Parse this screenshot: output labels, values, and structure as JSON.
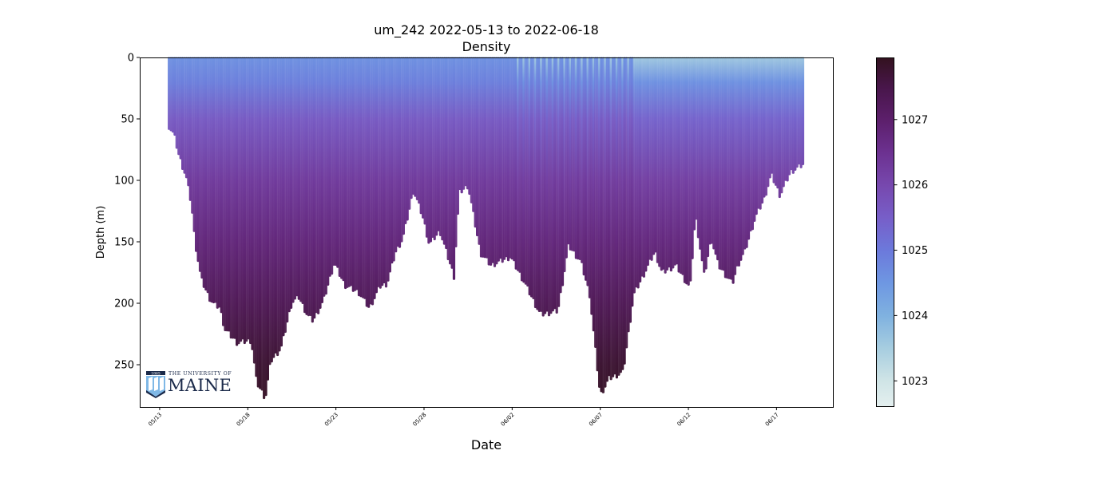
{
  "chart_data": {
    "type": "scatter",
    "title": "um_242 2022-05-13 to 2022-06-18",
    "subtitle": "Density",
    "xlabel": "Date",
    "ylabel": "Depth (m)",
    "x_units": "days since 2022-05-13",
    "xlim": [
      -1.13,
      38.2
    ],
    "ylim": [
      284.4,
      0
    ],
    "y_inverted": true,
    "xticks": [
      {
        "day": 0,
        "label": "05/13"
      },
      {
        "day": 5,
        "label": "05/18"
      },
      {
        "day": 10,
        "label": "05/23"
      },
      {
        "day": 15,
        "label": "05/28"
      },
      {
        "day": 20,
        "label": "06/02"
      },
      {
        "day": 25,
        "label": "06/07"
      },
      {
        "day": 30,
        "label": "06/12"
      },
      {
        "day": 35,
        "label": "06/17"
      }
    ],
    "yticks": [
      0,
      50,
      100,
      150,
      200,
      250
    ],
    "grid": false,
    "profile_max_depth": {
      "day": [
        0.53,
        0.82,
        1.1,
        1.5,
        1.8,
        2.0,
        2.35,
        2.8,
        3.1,
        3.4,
        3.7,
        4.4,
        5.2,
        5.5,
        6.0,
        6.3,
        6.9,
        7.5,
        7.9,
        8.4,
        8.7,
        9.3,
        9.9,
        10.5,
        11.3,
        11.9,
        12.5,
        12.9,
        13.4,
        13.8,
        14.1,
        14.4,
        14.9,
        15.3,
        15.9,
        16.7,
        17.0,
        17.5,
        18.2,
        18.8,
        19.9,
        20.7,
        21.6,
        22.6,
        23.2,
        23.9,
        24.4,
        25.0,
        25.5,
        26.3,
        26.9,
        28.1,
        28.5,
        29.3,
        30.1,
        30.4,
        30.9,
        31.3,
        31.7,
        32.5,
        32.8,
        33.2,
        33.8,
        34.3,
        34.7,
        35.2,
        35.8,
        36.5
      ],
      "depth": [
        58,
        65,
        82,
        99,
        121,
        151,
        182,
        197,
        203,
        205,
        223,
        234,
        232,
        266,
        279,
        249,
        238,
        201,
        197,
        212,
        216,
        200,
        169,
        187,
        193,
        206,
        188,
        186,
        160,
        149,
        130,
        110,
        130,
        154,
        143,
        180,
        112,
        106,
        161,
        171,
        164,
        185,
        211,
        208,
        155,
        168,
        195,
        277,
        263,
        258,
        195,
        160,
        177,
        171,
        190,
        130,
        180,
        149,
        171,
        186,
        171,
        160,
        132,
        117,
        97,
        114,
        95,
        89
      ]
    },
    "density_profile": {
      "depth": [
        0,
        20,
        50,
        100,
        150,
        200,
        250,
        284
      ],
      "early_density": [
        1024.6,
        1024.9,
        1025.6,
        1026.3,
        1026.8,
        1027.3,
        1027.75,
        1027.9
      ],
      "late_density": [
        1023.6,
        1024.6,
        1025.4,
        1026.2,
        1026.75,
        1027.3,
        1027.75,
        1027.9
      ]
    },
    "colorbar": {
      "label": "",
      "range": [
        1022.6,
        1027.95
      ],
      "ticks": [
        1023,
        1024,
        1025,
        1026,
        1027
      ],
      "tick_labels": [
        "1023",
        "1024",
        "1025",
        "1026",
        "1027"
      ],
      "colormap": [
        {
          "v": 1022.6,
          "c": "#e4efef"
        },
        {
          "v": 1023.0,
          "c": "#cfe4e6"
        },
        {
          "v": 1023.5,
          "c": "#a6cde0"
        },
        {
          "v": 1024.0,
          "c": "#7fb1e0"
        },
        {
          "v": 1024.5,
          "c": "#6e97e2"
        },
        {
          "v": 1025.0,
          "c": "#6c79db"
        },
        {
          "v": 1025.5,
          "c": "#775ec8"
        },
        {
          "v": 1026.0,
          "c": "#7748ae"
        },
        {
          "v": 1026.5,
          "c": "#6c3190"
        },
        {
          "v": 1027.0,
          "c": "#5c1f6b"
        },
        {
          "v": 1027.5,
          "c": "#48164a"
        },
        {
          "v": 1027.95,
          "c": "#33121f"
        }
      ]
    }
  },
  "logo": {
    "year": "1865",
    "line1": "THE UNIVERSITY OF",
    "line2": "MAINE"
  }
}
